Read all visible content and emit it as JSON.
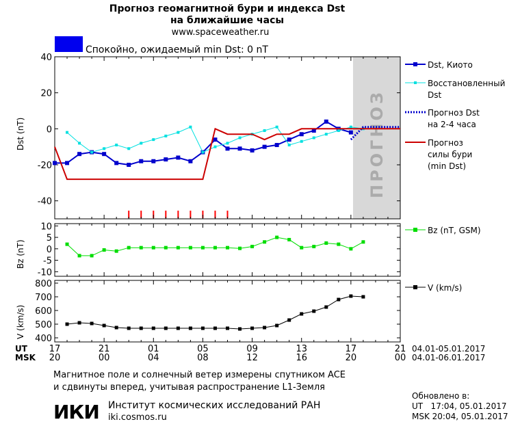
{
  "header": {
    "title_line1": "Прогноз геомагнитной бури и индекса Dst",
    "title_line2": "на ближайшие часы",
    "site": "www.spaceweather.ru",
    "status_color": "#0000ee",
    "status_text": "Спокойно, ожидаемый min Dst: 0 nT"
  },
  "panels": {
    "dst": {
      "ylabel": "Dst (nT)",
      "yticks": [
        40,
        20,
        0,
        -20,
        -40
      ],
      "ylim": [
        -50,
        40
      ],
      "forecast_text": "ПРОГНОЗ"
    },
    "bz": {
      "ylabel": "Bz (nT)",
      "yticks": [
        10,
        5,
        0,
        -5,
        -10
      ],
      "ylim": [
        -12,
        11
      ]
    },
    "v": {
      "ylabel": "V (km/s)",
      "yticks": [
        800,
        700,
        600,
        500,
        400
      ],
      "ylim": [
        370,
        820
      ]
    }
  },
  "legend": {
    "dst_kyoto": "Dst, Киото",
    "dst_restored_1": "Восстановленный",
    "dst_restored_2": "Dst",
    "dst_forecast_1": "Прогноз Dst",
    "dst_forecast_2": "на 2-4 часа",
    "storm_1": "Прогноз",
    "storm_2": "силы бури",
    "storm_3": "(min Dst)",
    "bz": "Bz (nT, GSM)",
    "v": "V (km/s)"
  },
  "time_axis": {
    "ut_label": "UT",
    "msk_label": "MSK",
    "ut_ticks": [
      "17",
      "21",
      "01",
      "05",
      "09",
      "13",
      "17",
      "21"
    ],
    "msk_ticks": [
      "20",
      "00",
      "04",
      "08",
      "12",
      "16",
      "20",
      "00"
    ],
    "ut_range": "04.01-05.01.2017",
    "msk_range": "04.01-06.01.2017"
  },
  "footer": {
    "note_line1": "Магнитное поле и солнечный ветер измерены спутником ACE",
    "note_line2": "и сдвинуты вперед, учитывая распространение L1-Земля",
    "logo": "ИКИ",
    "institute": "Институт космических исследований РАН",
    "institute_site": "iki.cosmos.ru",
    "updated_label": "Обновлено в:",
    "updated_ut": "UT   17:04, 05.01.2017",
    "updated_msk": "MSK 20:04, 05.01.2017"
  },
  "chart_data": {
    "type": "line",
    "x_unit": "hours since 17 UT 04.01.2017",
    "x_range": [
      0,
      28
    ],
    "forecast_region": [
      24,
      28
    ],
    "storm_marks_x": [
      6,
      7,
      8,
      9,
      10,
      11,
      12,
      13,
      14
    ],
    "series": [
      {
        "name": "Dst, Киото",
        "panel": "dst",
        "color": "#0000cc",
        "x": [
          0,
          1,
          2,
          3,
          4,
          5,
          6,
          7,
          8,
          9,
          10,
          11,
          12,
          13,
          14,
          15,
          16,
          17,
          18,
          19,
          20,
          21,
          22,
          23,
          24
        ],
        "y": [
          -19,
          -19,
          -14,
          -13,
          -14,
          -19,
          -20,
          -18,
          -18,
          -17,
          -16,
          -18,
          -13,
          -6,
          -11,
          -11,
          -12,
          -10,
          -9,
          -6,
          -3,
          -1,
          4,
          0,
          -2
        ]
      },
      {
        "name": "Восстановленный Dst",
        "panel": "dst",
        "color": "#00e0e0",
        "x": [
          1,
          2,
          3,
          4,
          5,
          6,
          7,
          8,
          9,
          10,
          11,
          12,
          13,
          14,
          15,
          16,
          17,
          18,
          19,
          20,
          21,
          22,
          23,
          24,
          25
        ],
        "y": [
          -2,
          -8,
          -13,
          -11,
          -9,
          -11,
          -8,
          -6,
          -4,
          -2,
          1,
          -13,
          -10,
          -8,
          -5,
          -3,
          -1,
          1,
          -9,
          -7,
          -5,
          -3,
          -1,
          1,
          0
        ]
      },
      {
        "name": "Прогноз Dst на 2-4 часа",
        "panel": "dst",
        "color": "#0000cc",
        "x": [
          24,
          25,
          26,
          27,
          28
        ],
        "y": [
          -6,
          1,
          1,
          1,
          1
        ]
      },
      {
        "name": "Прогноз силы бури (min Dst)",
        "panel": "dst",
        "color": "#cc0000",
        "x": [
          0,
          1,
          2,
          3,
          4,
          5,
          6,
          7,
          8,
          9,
          10,
          11,
          12,
          13,
          14,
          15,
          16,
          17,
          18,
          19,
          20,
          21,
          22,
          23,
          24,
          25,
          26,
          27,
          28
        ],
        "y": [
          -10,
          -28,
          -28,
          -28,
          -28,
          -28,
          -28,
          -28,
          -28,
          -28,
          -28,
          -28,
          -28,
          0,
          -3,
          -3,
          -3,
          -6,
          -3,
          -3,
          0,
          0,
          0,
          0,
          0,
          0,
          0,
          0,
          0
        ]
      },
      {
        "name": "Bz (nT, GSM)",
        "panel": "bz",
        "color": "#00dd00",
        "x": [
          1,
          2,
          3,
          4,
          5,
          6,
          7,
          8,
          9,
          10,
          11,
          12,
          13,
          14,
          15,
          16,
          17,
          18,
          19,
          20,
          21,
          22,
          23,
          24,
          25
        ],
        "y": [
          2,
          -3,
          -3,
          -0.5,
          -1,
          0.5,
          0.5,
          0.5,
          0.5,
          0.5,
          0.5,
          0.5,
          0.5,
          0.5,
          0.2,
          1,
          3,
          5,
          4,
          0.5,
          1,
          2.5,
          2,
          0,
          3
        ]
      },
      {
        "name": "V (km/s)",
        "panel": "v",
        "color": "#000000",
        "x": [
          1,
          2,
          3,
          4,
          5,
          6,
          7,
          8,
          9,
          10,
          11,
          12,
          13,
          14,
          15,
          16,
          17,
          18,
          19,
          20,
          21,
          22,
          23,
          24,
          25
        ],
        "y": [
          500,
          510,
          505,
          490,
          475,
          470,
          470,
          470,
          470,
          470,
          470,
          470,
          470,
          470,
          465,
          470,
          475,
          490,
          530,
          575,
          595,
          625,
          680,
          705,
          700
        ]
      }
    ]
  }
}
